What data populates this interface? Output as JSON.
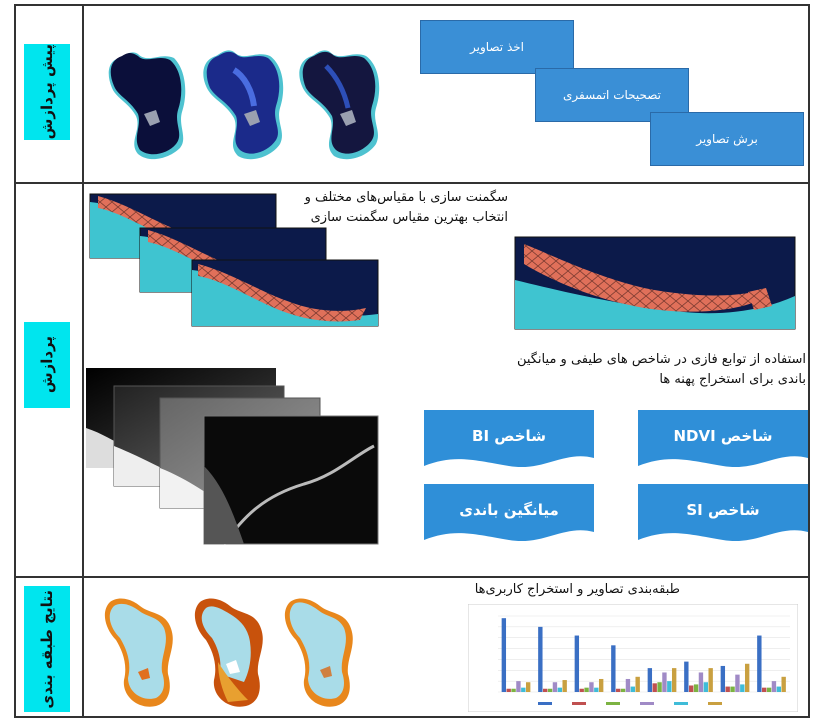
{
  "rows": [
    {
      "label": "پیش پردازش"
    },
    {
      "label": "پردازش"
    },
    {
      "label": "نتایج طبقه بندی"
    }
  ],
  "preprocess_steps": [
    "اخذ تصاویر",
    "تصحیحات اتمسفری",
    "برش تصاویر"
  ],
  "segmentation_caption_line1": "سگمنت سازی با مقیاس‌های مختلف و",
  "segmentation_caption_line2": "انتخاب بهترین مقیاس سگمنت سازی",
  "fuzzy_caption_line1": "استفاده از توابع فازی در شاخص های طیفی و میانگین",
  "fuzzy_caption_line2": "باندی برای استخراج پهنه ها",
  "indices": [
    "شاخص BI",
    "شاخص NDVI",
    "میانگین باندی",
    "شاخص SI"
  ],
  "classification_caption": "طبقه‌بندی تصاویر و استخراج کاربری‌ها",
  "colors": {
    "accent_box": "#3a8fd6",
    "label_bg": "#00e5ee",
    "banner": "#2f8fd8"
  },
  "chart_data": {
    "type": "bar",
    "categories": [
      "",
      "",
      "",
      "",
      "",
      "",
      "",
      ""
    ],
    "series": [
      {
        "values": [
          68,
          60,
          52,
          43,
          22,
          28,
          24,
          52
        ],
        "color": "#3a6fc4"
      },
      {
        "values": [
          3,
          3,
          3,
          3,
          8,
          6,
          5,
          4
        ],
        "color": "#c05050"
      },
      {
        "values": [
          3,
          3,
          4,
          3,
          9,
          7,
          5,
          4
        ],
        "color": "#7cb342"
      },
      {
        "values": [
          10,
          9,
          9,
          12,
          18,
          18,
          16,
          10
        ],
        "color": "#a08ac6"
      },
      {
        "values": [
          4,
          4,
          4,
          5,
          10,
          9,
          7,
          5
        ],
        "color": "#3fbcd8"
      },
      {
        "values": [
          9,
          11,
          12,
          14,
          22,
          22,
          26,
          14
        ],
        "color": "#c9a040"
      }
    ],
    "ylim": [
      0,
      70
    ]
  }
}
